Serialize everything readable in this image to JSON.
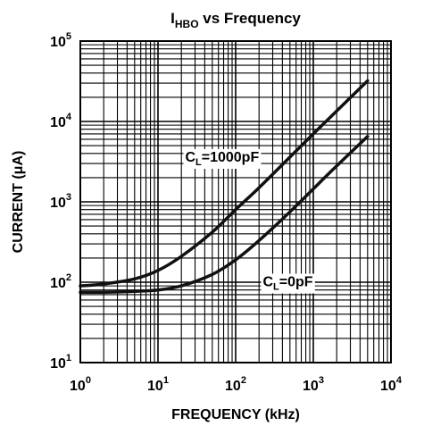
{
  "chart_data": {
    "type": "line",
    "title": {
      "main": "I",
      "sub": "HBO",
      "rest": " vs Frequency"
    },
    "xlabel": "FREQUENCY (kHz)",
    "ylabel": "CURRENT (μA)",
    "x_scale": "log",
    "y_scale": "log",
    "xlim": [
      1,
      10000
    ],
    "ylim": [
      10,
      100000
    ],
    "grid": true,
    "x_ticks": [
      {
        "base": "10",
        "exp": "0",
        "value": 1
      },
      {
        "base": "10",
        "exp": "1",
        "value": 10
      },
      {
        "base": "10",
        "exp": "2",
        "value": 100
      },
      {
        "base": "10",
        "exp": "3",
        "value": 1000
      },
      {
        "base": "10",
        "exp": "4",
        "value": 10000
      }
    ],
    "y_ticks": [
      {
        "base": "10",
        "exp": "1",
        "value": 10
      },
      {
        "base": "10",
        "exp": "2",
        "value": 100
      },
      {
        "base": "10",
        "exp": "3",
        "value": 1000
      },
      {
        "base": "10",
        "exp": "4",
        "value": 10000
      },
      {
        "base": "10",
        "exp": "5",
        "value": 100000
      }
    ],
    "series": [
      {
        "label": {
          "main": "C",
          "sub": "L",
          "rest": "=1000pF"
        },
        "label_at": [
          1.35,
          3.5
        ],
        "x": [
          1,
          2,
          5,
          10,
          20,
          50,
          100,
          200,
          500,
          1000,
          2000,
          5000
        ],
        "y": [
          90,
          95,
          110,
          140,
          210,
          420,
          800,
          1500,
          3600,
          7000,
          13500,
          32000
        ]
      },
      {
        "label": {
          "main": "C",
          "sub": "L",
          "rest": "=0pF"
        },
        "label_at": [
          2.35,
          1.95
        ],
        "x": [
          1,
          2,
          5,
          10,
          20,
          50,
          100,
          200,
          500,
          1000,
          2000,
          5000
        ],
        "y": [
          75,
          75,
          77,
          80,
          90,
          125,
          190,
          330,
          750,
          1450,
          2800,
          6500
        ]
      }
    ]
  }
}
